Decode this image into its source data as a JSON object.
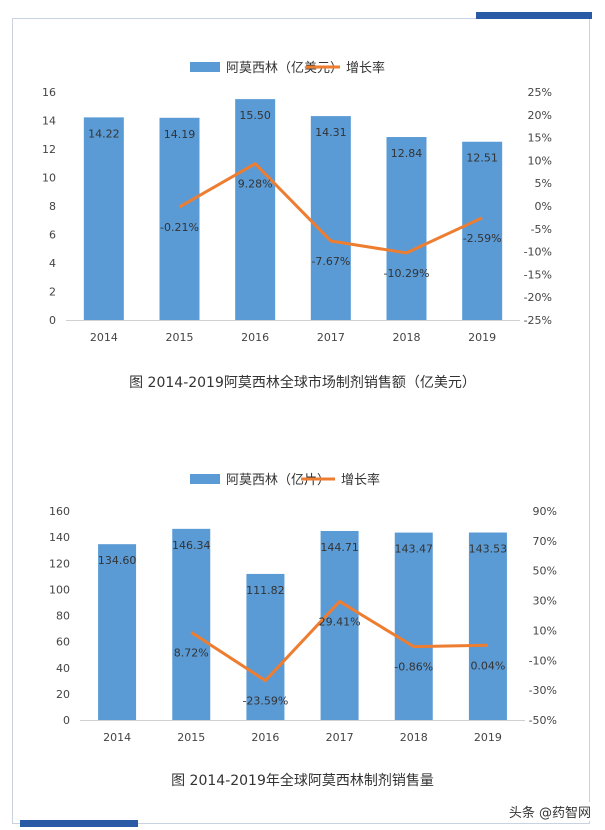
{
  "colors": {
    "bar": "#5b9bd5",
    "line": "#ed7d31",
    "frame": "#c9d2e0",
    "accent": "#2a5aa6"
  },
  "watermark": "头条 @药智网",
  "chart_data": [
    {
      "type": "bar",
      "secondary_type": "line",
      "title": "图 2014-2019阿莫西林全球市场制剂销售额（亿美元）",
      "categories": [
        "2014",
        "2015",
        "2016",
        "2017",
        "2018",
        "2019"
      ],
      "series": [
        {
          "name": "阿莫西林（亿美元）",
          "type": "bar",
          "axis": "left",
          "values": [
            14.22,
            14.19,
            15.5,
            14.31,
            12.84,
            12.51
          ],
          "labels": [
            "14.22",
            "14.19",
            "15.50",
            "14.31",
            "12.84",
            "12.51"
          ]
        },
        {
          "name": "增长率",
          "type": "line",
          "axis": "right",
          "values": [
            null,
            -0.21,
            9.28,
            -7.67,
            -10.29,
            -2.59
          ],
          "labels": [
            "",
            "-0.21%",
            "9.28%",
            "-7.67%",
            "-10.29%",
            "-2.59%"
          ]
        }
      ],
      "ylim": [
        0,
        16
      ],
      "yticks": [
        "0",
        "2",
        "4",
        "6",
        "8",
        "10",
        "12",
        "14",
        "16"
      ],
      "y2lim": [
        -25,
        25
      ],
      "y2ticks": [
        "-25%",
        "-20%",
        "-15%",
        "-10%",
        "-5%",
        "0%",
        "5%",
        "10%",
        "15%",
        "20%",
        "25%"
      ],
      "legend": "top",
      "grid": false
    },
    {
      "type": "bar",
      "secondary_type": "line",
      "title": "图 2014-2019年全球阿莫西林制剂销售量",
      "categories": [
        "2014",
        "2015",
        "2016",
        "2017",
        "2018",
        "2019"
      ],
      "series": [
        {
          "name": "阿莫西林（亿片）",
          "type": "bar",
          "axis": "left",
          "values": [
            134.6,
            146.34,
            111.82,
            144.71,
            143.47,
            143.53
          ],
          "labels": [
            "134.60",
            "146.34",
            "111.82",
            "144.71",
            "143.47",
            "143.53"
          ]
        },
        {
          "name": "增长率",
          "type": "line",
          "axis": "right",
          "values": [
            null,
            8.72,
            -23.59,
            29.41,
            -0.86,
            0.04
          ],
          "labels": [
            "",
            "8.72%",
            "-23.59%",
            "29.41%",
            "-0.86%",
            "0.04%"
          ]
        }
      ],
      "ylim": [
        0,
        160
      ],
      "yticks": [
        "0",
        "20",
        "40",
        "60",
        "80",
        "100",
        "120",
        "140",
        "160"
      ],
      "y2lim": [
        -50,
        90
      ],
      "y2ticks": [
        "-50%",
        "-30%",
        "-10%",
        "10%",
        "30%",
        "50%",
        "70%",
        "90%"
      ],
      "legend": "top",
      "grid": false
    }
  ]
}
